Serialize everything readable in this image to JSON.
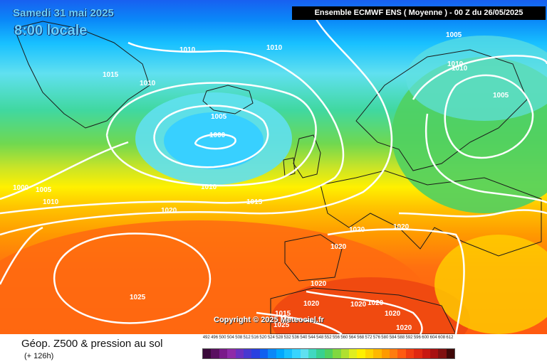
{
  "header": {
    "date": "Samedi 31 mai 2025",
    "time": "8:00 locale",
    "model": "Ensemble ECMWF ENS  ( Moyenne )  -  00 Z du 26/05/2025"
  },
  "copyright": "Copyright © 2025 Meteociel.fr",
  "footer": {
    "title": "Géop. Z500 & pression au sol",
    "subtitle": "(+ 126h)"
  },
  "isobar_labels": [
    "1005",
    "1010",
    "1010",
    "1010",
    "1015",
    "1010",
    "1005",
    "1000",
    "1000",
    "1005",
    "1010",
    "1010",
    "1020",
    "1015",
    "1005",
    "1010",
    "1020",
    "1020",
    "1020",
    "1020",
    "1025",
    "1020",
    "1020",
    "1020",
    "1020",
    "1020",
    "1015",
    "1025"
  ],
  "legend": {
    "ticks": [
      "492",
      "496",
      "500",
      "504",
      "508",
      "512",
      "516",
      "520",
      "524",
      "528",
      "532",
      "536",
      "540",
      "544",
      "548",
      "552",
      "556",
      "560",
      "564",
      "568",
      "572",
      "576",
      "580",
      "584",
      "588",
      "592",
      "596",
      "600",
      "604",
      "608",
      "612"
    ],
    "colors": [
      "#3a0a3a",
      "#5a1060",
      "#7a1a8a",
      "#8e2aa8",
      "#6a30c0",
      "#4838d0",
      "#2a40e0",
      "#1060f0",
      "#0a88f8",
      "#00a8ff",
      "#18c0ff",
      "#38d4ff",
      "#60e0f0",
      "#40d8c0",
      "#38d090",
      "#50d060",
      "#80d840",
      "#b0e030",
      "#e0ee20",
      "#fff000",
      "#ffd400",
      "#ffb800",
      "#ff9a00",
      "#ff7c10",
      "#ff5a10",
      "#f03c10",
      "#e02810",
      "#c81810",
      "#a81010",
      "#801010",
      "#400808"
    ]
  }
}
